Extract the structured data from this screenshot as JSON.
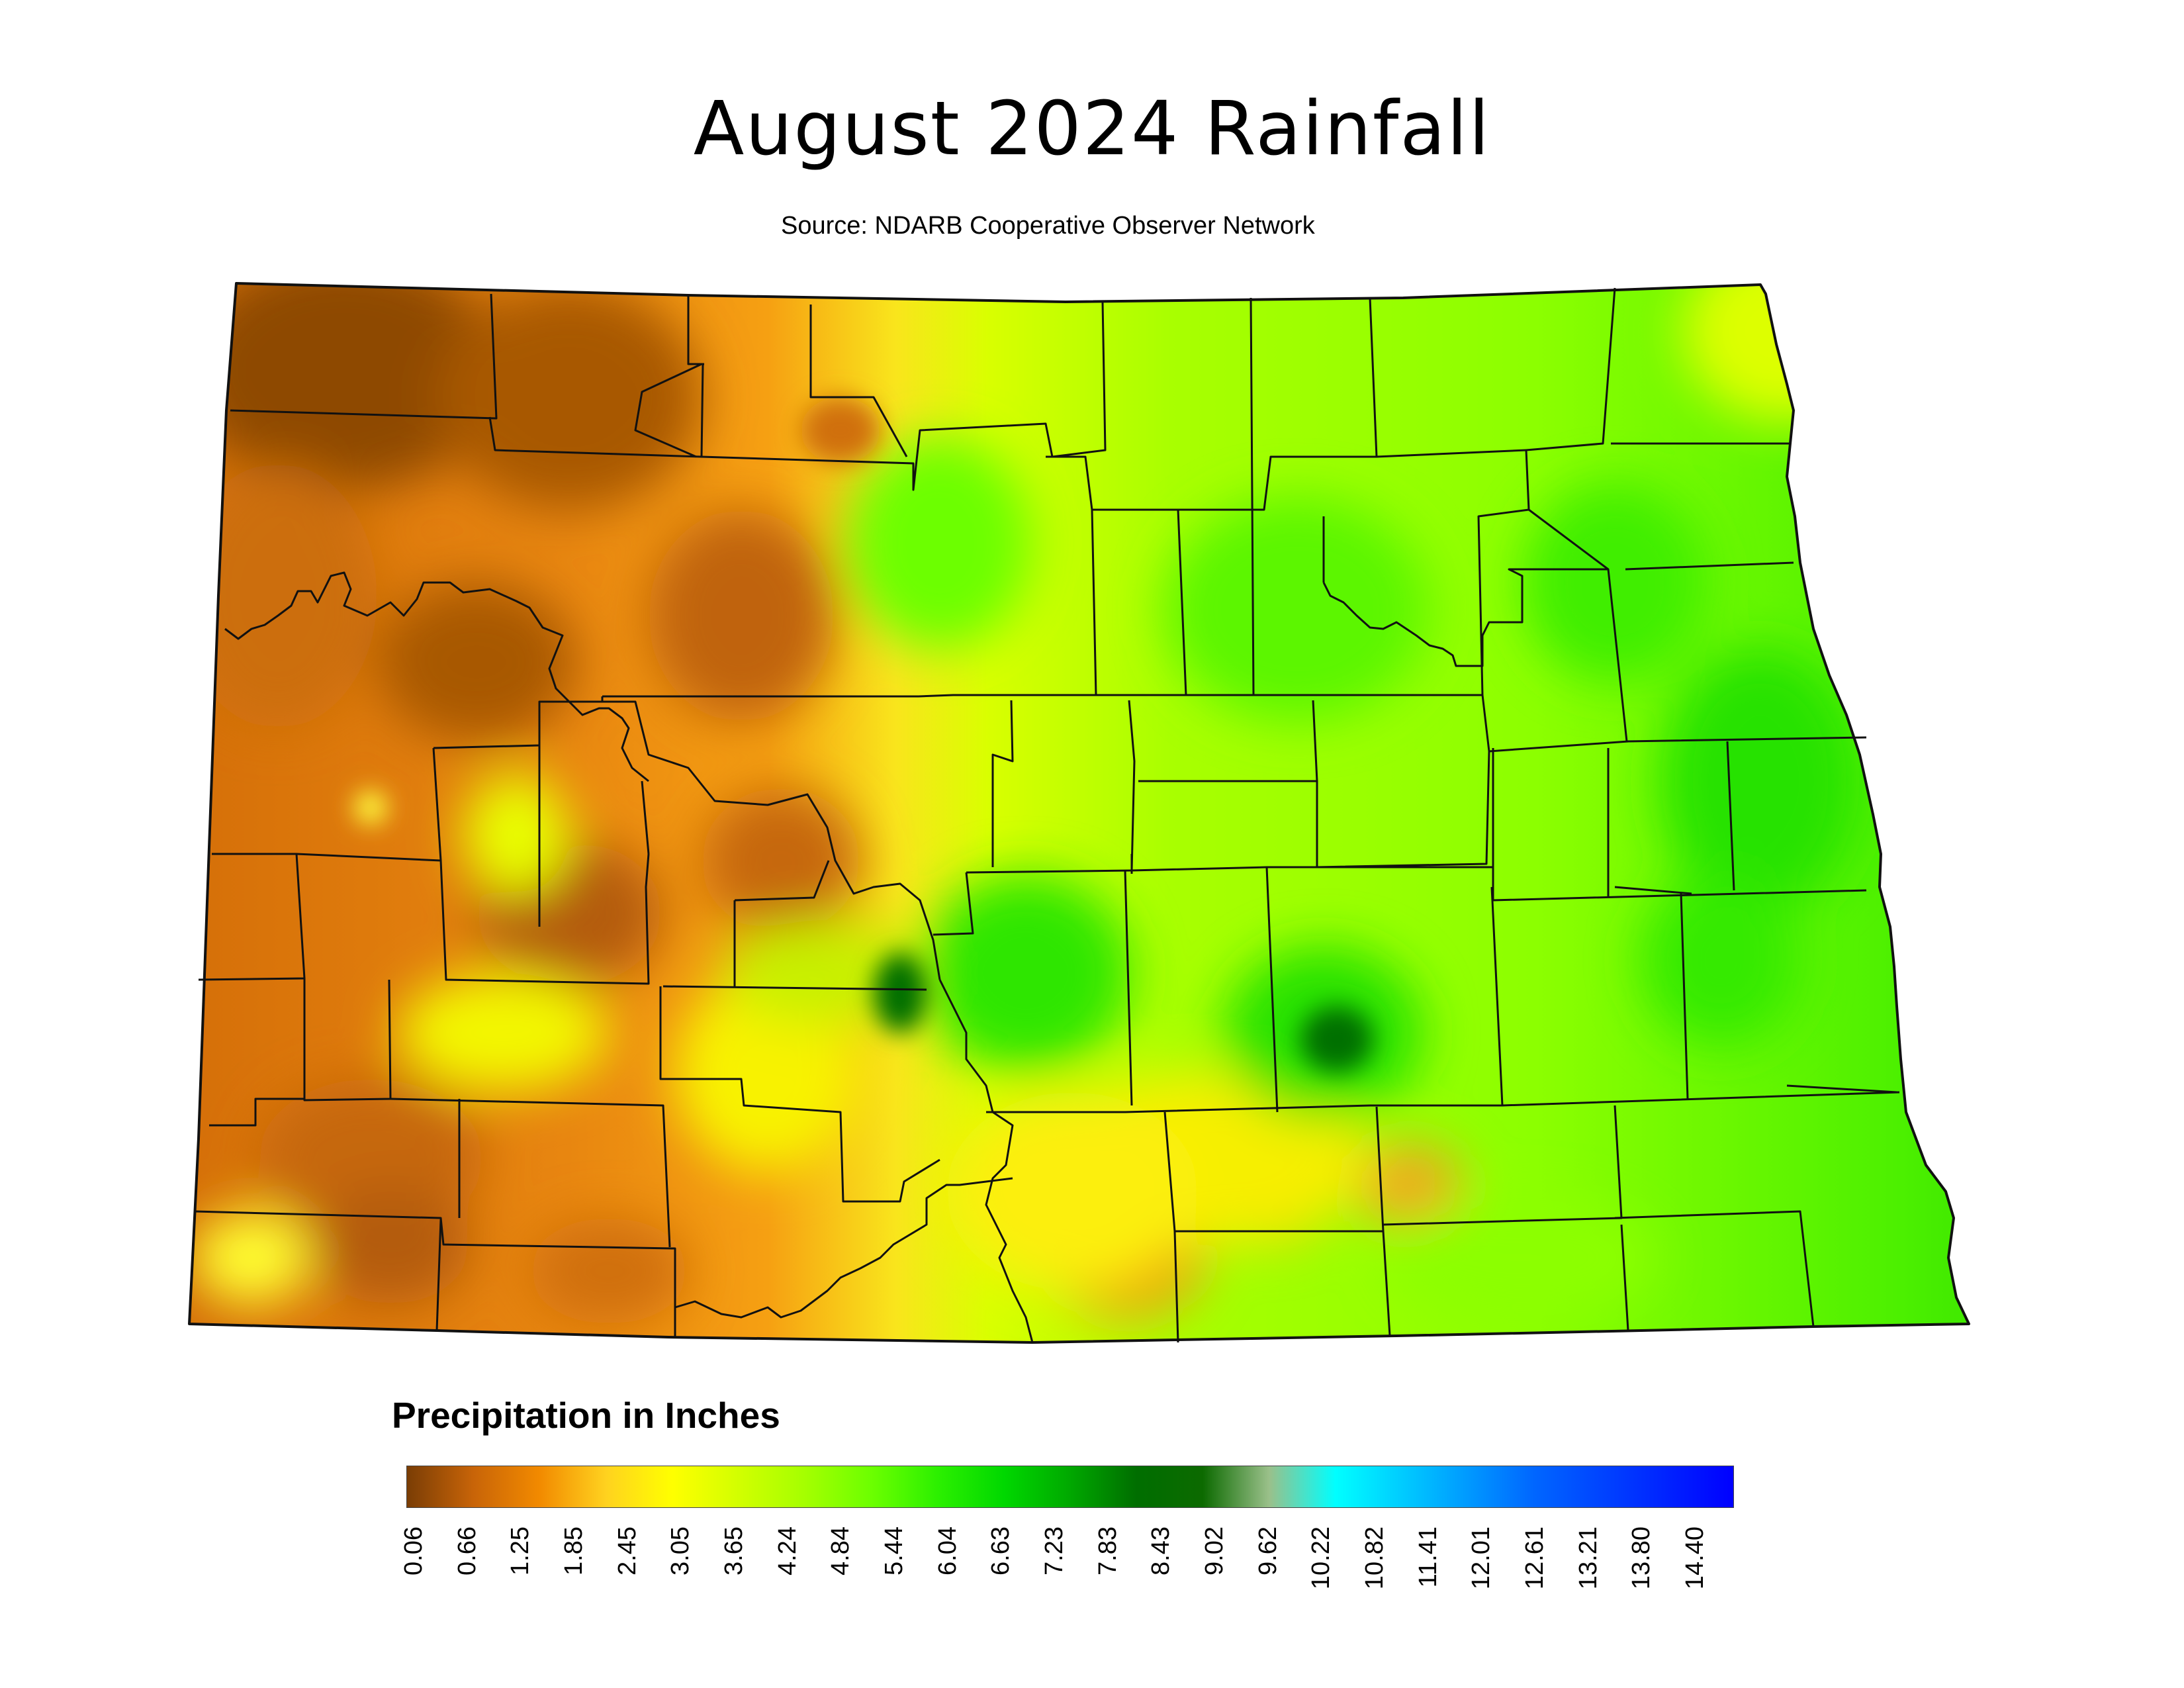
{
  "title": "August 2024 Rainfall",
  "subtitle": "Source: NDARB Cooperative Observer Network",
  "legend": {
    "title": "Precipitation in Inches",
    "ticks": [
      "0.06",
      "0.66",
      "1.25",
      "1.85",
      "2.45",
      "3.05",
      "3.65",
      "4.24",
      "4.84",
      "5.44",
      "6.04",
      "6.63",
      "7.23",
      "7.83",
      "8.43",
      "9.02",
      "9.62",
      "10.22",
      "10.82",
      "11.41",
      "12.01",
      "12.61",
      "13.21",
      "13.80",
      "14.40"
    ],
    "colors": [
      "#7a3d05",
      "#c86408",
      "#f28a00",
      "#ffd21f",
      "#ffff00",
      "#d2ff00",
      "#a5ff00",
      "#6cff00",
      "#2cf000",
      "#00d800",
      "#00a800",
      "#006e00",
      "#0c6a00",
      "#9ac08a",
      "#00ffff",
      "#00ccff",
      "#0099ff",
      "#0066ff",
      "#0044ff",
      "#0022ff",
      "#0000ff"
    ]
  },
  "map": {
    "region": "North Dakota",
    "zones": [
      {
        "area": "northwest",
        "value_range": "0.06-1.25"
      },
      {
        "area": "west-central",
        "value_range": "0.66-2.45"
      },
      {
        "area": "southwest",
        "value_range": "0.66-2.45"
      },
      {
        "area": "central",
        "value_range": "3.05-4.84"
      },
      {
        "area": "east",
        "value_range": "3.65-5.44"
      },
      {
        "area": "local maxima",
        "value_range": "6.04-7.23"
      }
    ]
  }
}
